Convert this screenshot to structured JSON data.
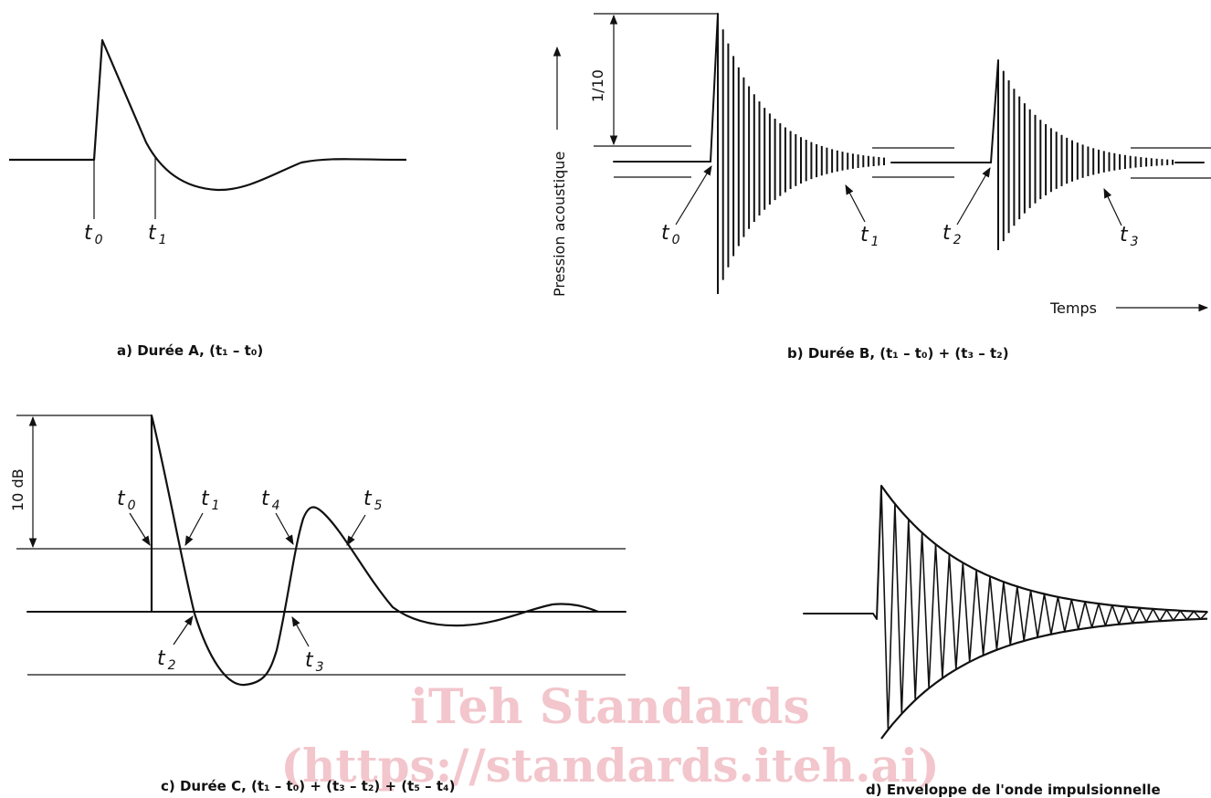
{
  "panel_a": {
    "caption": "a) Durée A, (t₁ – t₀)",
    "labels": {
      "t0": "t",
      "t0_sub": "0",
      "t1": "t",
      "t1_sub": "1"
    }
  },
  "panel_b": {
    "caption": "b) Durée B, (t₁ – t₀) + (t₃ – t₂)",
    "y_axis_label": "Pression acoustique",
    "x_axis_label": "Temps",
    "ratio_label": "1/10",
    "labels": {
      "t0": "t",
      "t0_sub": "0",
      "t1": "t",
      "t1_sub": "1",
      "t2": "t",
      "t2_sub": "2",
      "t3": "t",
      "t3_sub": "3"
    }
  },
  "panel_c": {
    "caption": "c) Durée C, (t₁ – t₀) + (t₃ – t₂) + (t₅ – t₄)",
    "db_label": "10 dB",
    "labels": {
      "t0": "t",
      "t0_sub": "0",
      "t1": "t",
      "t1_sub": "1",
      "t2": "t",
      "t2_sub": "2",
      "t3": "t",
      "t3_sub": "3",
      "t4": "t",
      "t4_sub": "4",
      "t5": "t",
      "t5_sub": "5"
    }
  },
  "panel_d": {
    "caption": "d) Enveloppe de l'onde impulsionnelle"
  },
  "watermark": {
    "line1": "iTeh Standards",
    "line2": "(https://standards.iteh.ai)"
  }
}
